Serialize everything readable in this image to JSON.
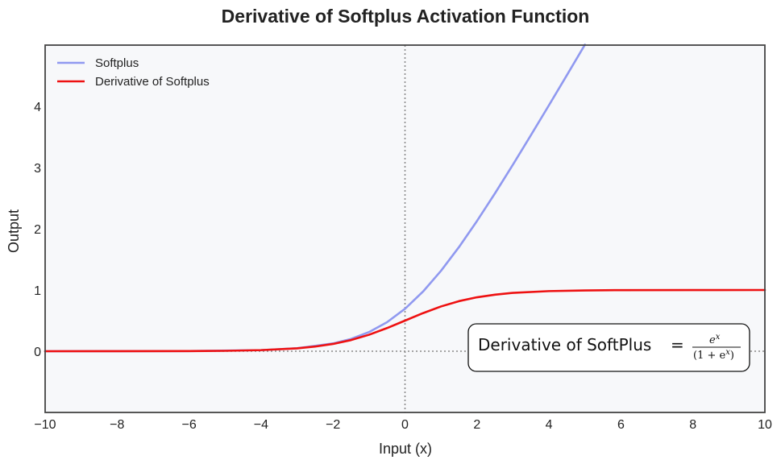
{
  "chart_data": {
    "type": "line",
    "title": "Derivative of Softplus Activation Function",
    "xlabel": "Input (x)",
    "ylabel": "Output",
    "xlim": [
      -10,
      10
    ],
    "ylim": [
      -1,
      5
    ],
    "xticks": [
      -10,
      -8,
      -6,
      -4,
      -2,
      0,
      2,
      4,
      6,
      8,
      10
    ],
    "xtick_labels": [
      "−10",
      "−8",
      "−6",
      "−4",
      "−2",
      "0",
      "2",
      "4",
      "6",
      "8",
      "10"
    ],
    "yticks": [
      0,
      1,
      2,
      3,
      4
    ],
    "ytick_labels": [
      "0",
      "1",
      "2",
      "3",
      "4"
    ],
    "grid": false,
    "legend_position": "top-left",
    "reference_lines": {
      "x": 0,
      "y": 0,
      "style": "dotted",
      "color": "#888888"
    },
    "background_color": "#f7f8fa",
    "series": [
      {
        "name": "Softplus",
        "color": "#9099f0",
        "x": [
          -10,
          -8,
          -6,
          -4,
          -3,
          -2,
          -1.5,
          -1,
          -0.5,
          0,
          0.5,
          1,
          1.5,
          2,
          2.5,
          3,
          3.5,
          4,
          4.5,
          5
        ],
        "y": [
          4.54e-05,
          0.000335,
          0.00248,
          0.0181,
          0.0486,
          0.127,
          0.201,
          0.313,
          0.474,
          0.693,
          0.974,
          1.313,
          1.701,
          2.127,
          2.579,
          3.049,
          3.53,
          4.018,
          4.511,
          5.007
        ]
      },
      {
        "name": "Derivative of Softplus",
        "color": "#ee1111",
        "x": [
          -10,
          -8,
          -6,
          -5,
          -4,
          -3,
          -2.5,
          -2,
          -1.5,
          -1,
          -0.5,
          0,
          0.5,
          1,
          1.5,
          2,
          2.5,
          3,
          4,
          5,
          6,
          8,
          10
        ],
        "y": [
          4.54e-05,
          0.000335,
          0.00247,
          0.00669,
          0.018,
          0.0474,
          0.0759,
          0.119,
          0.182,
          0.269,
          0.378,
          0.5,
          0.622,
          0.731,
          0.818,
          0.881,
          0.924,
          0.953,
          0.982,
          0.993,
          0.998,
          0.9997,
          0.99995
        ]
      }
    ],
    "annotation": {
      "label": "Derivative of SoftPlus",
      "equals": "=",
      "numerator": "e",
      "numerator_sup": "x",
      "denominator_open": "(1 + e",
      "denominator_sup": "x",
      "denominator_close": ")",
      "anchor_x": 6,
      "anchor_y": 0
    }
  }
}
